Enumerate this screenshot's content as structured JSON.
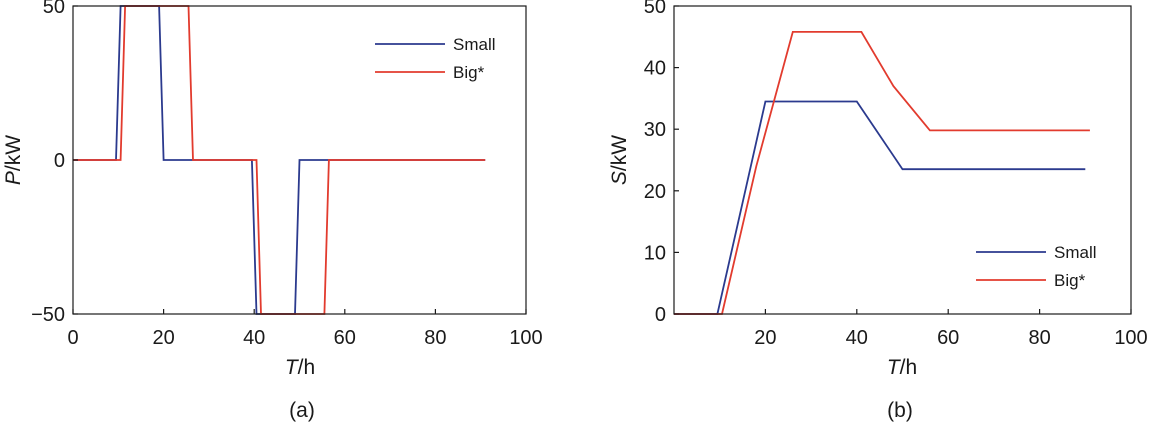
{
  "figure": {
    "panels": [
      {
        "caption": "(a)",
        "xlabel_var": "T",
        "xlabel_unit": "/h",
        "ylabel_var": "P",
        "ylabel_unit": "/kW"
      },
      {
        "caption": "(b)",
        "xlabel_var": "T",
        "xlabel_unit": "/h",
        "ylabel_var": "S",
        "ylabel_unit": "/kW"
      }
    ]
  },
  "chart_data": [
    {
      "type": "line",
      "caption": "(a)",
      "xlabel": "T/h",
      "ylabel": "P/kW",
      "xlim": [
        0,
        100
      ],
      "ylim": [
        -50,
        50
      ],
      "xticks": [
        "0",
        "20",
        "40",
        "60",
        "80",
        "100"
      ],
      "yticks": [
        {
          "value": -50,
          "label": "−50"
        },
        {
          "value": 0,
          "label": "0"
        },
        {
          "value": 50,
          "label": "50"
        }
      ],
      "legend_position": "top-right",
      "grid": false,
      "series": [
        {
          "name": "Small",
          "color": "#2b3a8e",
          "points": [
            [
              0,
              0
            ],
            [
              9.5,
              0
            ],
            [
              10.5,
              50
            ],
            [
              19,
              50
            ],
            [
              20,
              0
            ],
            [
              39.5,
              0
            ],
            [
              40.5,
              -50
            ],
            [
              49,
              -50
            ],
            [
              50,
              0
            ],
            [
              91,
              0
            ]
          ]
        },
        {
          "name": "Big*",
          "color": "#e23b2e",
          "points": [
            [
              0,
              0
            ],
            [
              10.5,
              0
            ],
            [
              11.5,
              50
            ],
            [
              25.5,
              50
            ],
            [
              26.5,
              0
            ],
            [
              40.5,
              0
            ],
            [
              41.5,
              -50
            ],
            [
              55.5,
              -50
            ],
            [
              56.5,
              0
            ],
            [
              91,
              0
            ]
          ]
        }
      ]
    },
    {
      "type": "line",
      "caption": "(b)",
      "xlabel": "T/h",
      "ylabel": "S/kW",
      "xlim": [
        0,
        100
      ],
      "ylim": [
        0,
        50
      ],
      "xticks": [
        "20",
        "40",
        "60",
        "80",
        "100"
      ],
      "yticks": [
        {
          "value": 0,
          "label": "0"
        },
        {
          "value": 10,
          "label": "10"
        },
        {
          "value": 20,
          "label": "20"
        },
        {
          "value": 30,
          "label": "30"
        },
        {
          "value": 40,
          "label": "40"
        },
        {
          "value": 50,
          "label": "50"
        }
      ],
      "legend_position": "bottom-right",
      "grid": false,
      "series": [
        {
          "name": "Small",
          "color": "#2b3a8e",
          "points": [
            [
              0,
              0
            ],
            [
              9.5,
              0
            ],
            [
              15,
              18
            ],
            [
              20,
              34.5
            ],
            [
              40,
              34.5
            ],
            [
              50,
              23.5
            ],
            [
              90,
              23.5
            ]
          ]
        },
        {
          "name": "Big*",
          "color": "#e23b2e",
          "points": [
            [
              0,
              0
            ],
            [
              10.5,
              0
            ],
            [
              18,
              24
            ],
            [
              26,
              45.8
            ],
            [
              41,
              45.8
            ],
            [
              48,
              37
            ],
            [
              56,
              29.8
            ],
            [
              91,
              29.8
            ]
          ]
        }
      ]
    }
  ]
}
